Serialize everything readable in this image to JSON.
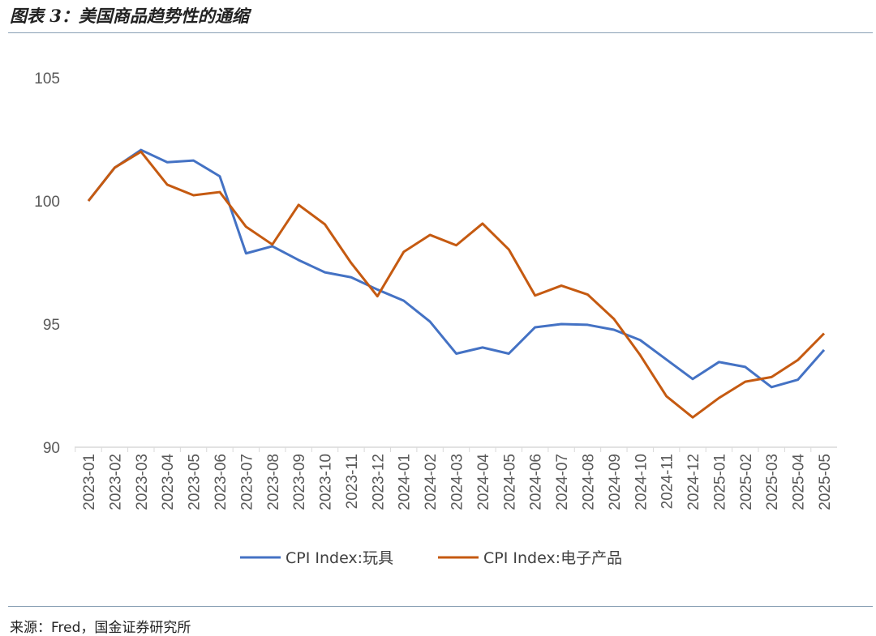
{
  "title": "图表 3：美国商品趋势性的通缩",
  "source": "来源：Fred，国金证券研究所",
  "chart_data": {
    "type": "line",
    "title": "图表 3：美国商品趋势性的通缩",
    "xlabel": "",
    "ylabel": "",
    "ylim": [
      90,
      105
    ],
    "yticks": [
      "90",
      "95",
      "100",
      "105"
    ],
    "grid": false,
    "legend_position": "bottom",
    "categories": [
      "2023-01",
      "2023-02",
      "2023-03",
      "2023-04",
      "2023-05",
      "2023-06",
      "2023-07",
      "2023-08",
      "2023-09",
      "2023-10",
      "2023-11",
      "2023-12",
      "2024-01",
      "2024-02",
      "2024-03",
      "2024-04",
      "2024-05",
      "2024-06",
      "2024-07",
      "2024-08",
      "2024-09",
      "2024-10",
      "2024-11",
      "2024-12",
      "2025-01",
      "2025-02",
      "2025-03",
      "2025-04",
      "2025-05"
    ],
    "series": [
      {
        "name": "CPI Index:玩具",
        "color": "#4472C4",
        "values": [
          100,
          101.35,
          102.07,
          101.57,
          101.64,
          101.0,
          97.87,
          98.16,
          97.6,
          97.1,
          96.9,
          96.4,
          95.95,
          95.1,
          93.8,
          94.05,
          93.8,
          94.87,
          95.0,
          94.97,
          94.77,
          94.35,
          93.56,
          92.77,
          93.46,
          93.26,
          92.44,
          92.74,
          93.95
        ]
      },
      {
        "name": "CPI Index:电子产品",
        "color": "#C55A11",
        "values": [
          100,
          101.35,
          102.0,
          100.66,
          100.23,
          100.36,
          98.95,
          98.23,
          99.84,
          99.05,
          97.48,
          96.13,
          97.93,
          98.62,
          98.2,
          99.08,
          98.03,
          96.16,
          96.56,
          96.2,
          95.21,
          93.74,
          92.07,
          91.21,
          92.0,
          92.66,
          92.85,
          93.54,
          94.62
        ]
      }
    ]
  }
}
